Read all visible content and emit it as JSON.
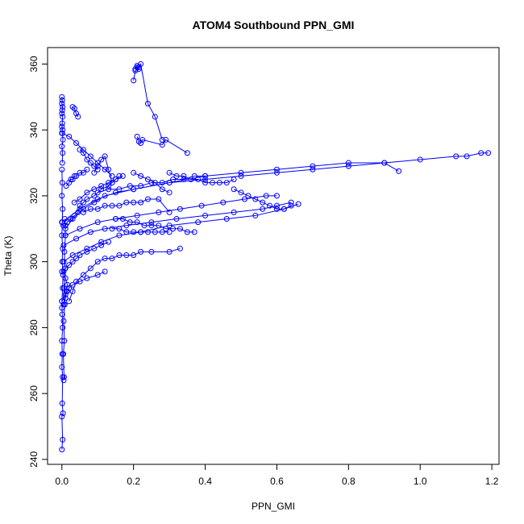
{
  "chart_data": {
    "type": "line",
    "title": "ATOM4 Southbound PPN_GMI",
    "xlabel": "PPN_GMI",
    "ylabel": "Theta (K)",
    "xlim": [
      -0.04,
      1.22
    ],
    "ylim": [
      238.5,
      365
    ],
    "x_ticks": [
      0.0,
      0.2,
      0.4,
      0.6,
      0.8,
      1.0,
      1.2
    ],
    "x_tick_labels": [
      "0.0",
      "0.2",
      "0.4",
      "0.6",
      "0.8",
      "1.0",
      "1.2"
    ],
    "y_ticks": [
      240,
      260,
      280,
      300,
      320,
      340,
      360
    ],
    "y_tick_labels": [
      "240",
      "260",
      "280",
      "300",
      "320",
      "340",
      "360"
    ],
    "grid": false,
    "legend": "none",
    "series_color": "#0000ff",
    "marker": "open-circle",
    "series": [
      {
        "x": [
          0.0,
          0.002,
          0.0,
          0.003,
          0.001,
          0.002,
          0.0,
          0.001,
          0.0,
          0.002,
          0.001,
          0.0,
          0.002,
          0.003,
          0.001,
          0.002,
          0.0,
          0.001,
          0.002,
          0.0,
          0.001,
          0.0
        ],
        "y": [
          243,
          246,
          253,
          254,
          257,
          265,
          268,
          272,
          276,
          280,
          284,
          288,
          292,
          296,
          300,
          304,
          308,
          312,
          316,
          320,
          324,
          328
        ]
      },
      {
        "x": [
          0.001,
          0.002,
          0.0,
          0.003,
          0.001,
          0.002,
          0.0,
          0.001,
          0.002,
          0.0,
          0.001,
          0.002,
          0.0,
          0.001,
          0.0
        ],
        "y": [
          330,
          333,
          335,
          337,
          339,
          340,
          341,
          342,
          344,
          345,
          346,
          347,
          348,
          349,
          350
        ]
      },
      {
        "x": [
          0.005,
          0.006,
          0.004,
          0.007,
          0.005,
          0.008,
          0.006,
          0.009,
          0.007,
          0.01,
          0.008
        ],
        "y": [
          264,
          265,
          272,
          276,
          282,
          287,
          292,
          298,
          303,
          308,
          313
        ]
      },
      {
        "x": [
          0.004,
          0.01,
          0.015,
          0.025,
          0.035,
          0.045,
          0.05,
          0.06,
          0.07,
          0.09,
          0.11,
          0.13,
          0.14,
          0.15,
          0.16
        ],
        "y": [
          311,
          311,
          312,
          313,
          314,
          315,
          317,
          318,
          319,
          320,
          322,
          323,
          324,
          325,
          326
        ]
      },
      {
        "x": [
          0.01,
          0.03,
          0.06,
          0.09,
          0.12,
          0.2,
          0.3,
          0.4,
          0.5,
          0.6,
          0.7,
          0.8,
          0.9,
          1.0,
          1.1,
          1.13,
          1.17,
          1.19
        ],
        "y": [
          310,
          313,
          316,
          318,
          320,
          322,
          324,
          325,
          326,
          327,
          328,
          329,
          330,
          331,
          332,
          332,
          333,
          333
        ]
      },
      {
        "x": [
          0.0,
          0.05,
          0.1,
          0.15,
          0.2,
          0.3,
          0.4,
          0.5,
          0.6,
          0.7,
          0.8,
          0.9,
          0.94
        ],
        "y": [
          312,
          316,
          319,
          321,
          322,
          324,
          326,
          327,
          328,
          329,
          330,
          330,
          327.5
        ]
      },
      {
        "x": [
          0.005,
          0.04,
          0.08,
          0.12,
          0.18,
          0.25,
          0.32,
          0.4,
          0.48,
          0.56,
          0.6,
          0.64
        ],
        "y": [
          305,
          307,
          309,
          310,
          311,
          312,
          313,
          314,
          315,
          316,
          317,
          318
        ]
      },
      {
        "x": [
          0.005,
          0.03,
          0.07,
          0.11,
          0.16,
          0.22,
          0.3,
          0.38,
          0.46,
          0.54,
          0.62,
          0.66
        ],
        "y": [
          300,
          302,
          304,
          306,
          308,
          309,
          311,
          312,
          313,
          314,
          316,
          317.5
        ]
      },
      {
        "x": [
          0.01,
          0.05,
          0.1,
          0.15,
          0.21,
          0.27,
          0.33,
          0.39,
          0.45,
          0.51,
          0.57,
          0.6
        ],
        "y": [
          308,
          310,
          312,
          313,
          314,
          315,
          316,
          317,
          318,
          319,
          320,
          320
        ]
      },
      {
        "x": [
          0.205,
          0.21,
          0.215,
          0.22,
          0.24,
          0.26,
          0.28
        ],
        "y": [
          358.5,
          359.5,
          359,
          360,
          348,
          344,
          337
        ]
      },
      {
        "x": [
          0.2,
          0.205,
          0.21,
          0.215
        ],
        "y": [
          355,
          358,
          359,
          358.5
        ]
      },
      {
        "x": [
          0.21,
          0.215,
          0.22,
          0.225,
          0.28,
          0.29,
          0.35
        ],
        "y": [
          338,
          336.5,
          336,
          337,
          335.5,
          337,
          333
        ]
      },
      {
        "x": [
          0.0,
          0.02,
          0.04,
          0.06,
          0.08,
          0.1,
          0.12,
          0.14
        ],
        "y": [
          339,
          338,
          336,
          334,
          332,
          330,
          328,
          326
        ]
      },
      {
        "x": [
          0.0,
          0.01,
          0.02,
          0.03,
          0.04,
          0.05,
          0.07,
          0.09,
          0.11,
          0.13
        ],
        "y": [
          297,
          298,
          299,
          300,
          301,
          302,
          303,
          304,
          305,
          306
        ]
      },
      {
        "x": [
          0.0,
          0.01,
          0.015,
          0.02,
          0.03,
          0.05,
          0.07,
          0.1,
          0.12
        ],
        "y": [
          288,
          290,
          291,
          292,
          293,
          294,
          295,
          296,
          297
        ]
      },
      {
        "x": [
          0.02,
          0.03,
          0.04,
          0.06,
          0.08,
          0.1,
          0.12,
          0.14,
          0.16,
          0.18,
          0.2,
          0.22,
          0.25,
          0.3,
          0.33
        ],
        "y": [
          288,
          291,
          294,
          296,
          298,
          300,
          301,
          301,
          302,
          302,
          302,
          303,
          303,
          303,
          304
        ]
      },
      {
        "x": [
          0.3,
          0.32,
          0.34,
          0.36,
          0.38,
          0.4,
          0.42,
          0.44,
          0.46,
          0.48
        ],
        "y": [
          327,
          326,
          326,
          325,
          325,
          324,
          324,
          324,
          324,
          325
        ]
      },
      {
        "x": [
          0.1,
          0.13,
          0.16,
          0.19,
          0.22,
          0.25,
          0.28,
          0.31,
          0.34,
          0.37,
          0.4
        ],
        "y": [
          321,
          322,
          322,
          323,
          323,
          324,
          324,
          325,
          325,
          326,
          326
        ]
      },
      {
        "x": [
          0.06,
          0.08,
          0.1,
          0.12,
          0.14,
          0.16,
          0.18,
          0.2,
          0.22,
          0.24,
          0.27,
          0.3
        ],
        "y": [
          315,
          316,
          316,
          317,
          317,
          317,
          318,
          318,
          318,
          319,
          319,
          315
        ]
      },
      {
        "x": [
          0.035,
          0.05,
          0.07,
          0.09,
          0.11,
          0.13,
          0.15,
          0.17
        ],
        "y": [
          318,
          319,
          321,
          322,
          323,
          324,
          325,
          326
        ]
      },
      {
        "x": [
          0.09,
          0.1,
          0.11,
          0.12,
          0.13,
          0.14
        ],
        "y": [
          327,
          329,
          331,
          332,
          328,
          324
        ]
      },
      {
        "x": [
          0.05,
          0.06,
          0.07,
          0.08,
          0.09,
          0.1
        ],
        "y": [
          334,
          333,
          331,
          330,
          329,
          328
        ]
      },
      {
        "x": [
          0.2,
          0.22,
          0.24,
          0.26,
          0.28,
          0.3
        ],
        "y": [
          327,
          326,
          325,
          324,
          322,
          321
        ]
      },
      {
        "x": [
          0.03,
          0.035,
          0.04,
          0.045
        ],
        "y": [
          347,
          346.5,
          345,
          344
        ]
      },
      {
        "x": [
          0.0,
          0.005,
          0.01,
          0.012,
          0.015,
          0.01,
          0.005
        ],
        "y": [
          286,
          287,
          289,
          291,
          293,
          295,
          297
        ]
      },
      {
        "x": [
          0.012,
          0.02,
          0.025,
          0.03,
          0.035,
          0.04,
          0.05,
          0.06,
          0.07
        ],
        "y": [
          323,
          324,
          325,
          325,
          326,
          326,
          327,
          327,
          328
        ]
      },
      {
        "x": [
          0.48,
          0.5,
          0.52,
          0.54,
          0.56,
          0.58,
          0.6,
          0.62,
          0.64
        ],
        "y": [
          322,
          321,
          320,
          319,
          318,
          317,
          316,
          316,
          317
        ]
      },
      {
        "x": [
          0.14,
          0.16,
          0.18,
          0.2,
          0.22,
          0.24,
          0.26,
          0.28,
          0.3
        ],
        "y": [
          310,
          310,
          309,
          309,
          309,
          309,
          309,
          309,
          309
        ]
      },
      {
        "x": [
          0.15,
          0.17,
          0.19,
          0.21,
          0.23,
          0.25,
          0.27,
          0.29,
          0.31,
          0.33,
          0.35,
          0.37
        ],
        "y": [
          313,
          313,
          312,
          312,
          311,
          311,
          311,
          310,
          310,
          310,
          309,
          309
        ]
      }
    ]
  }
}
